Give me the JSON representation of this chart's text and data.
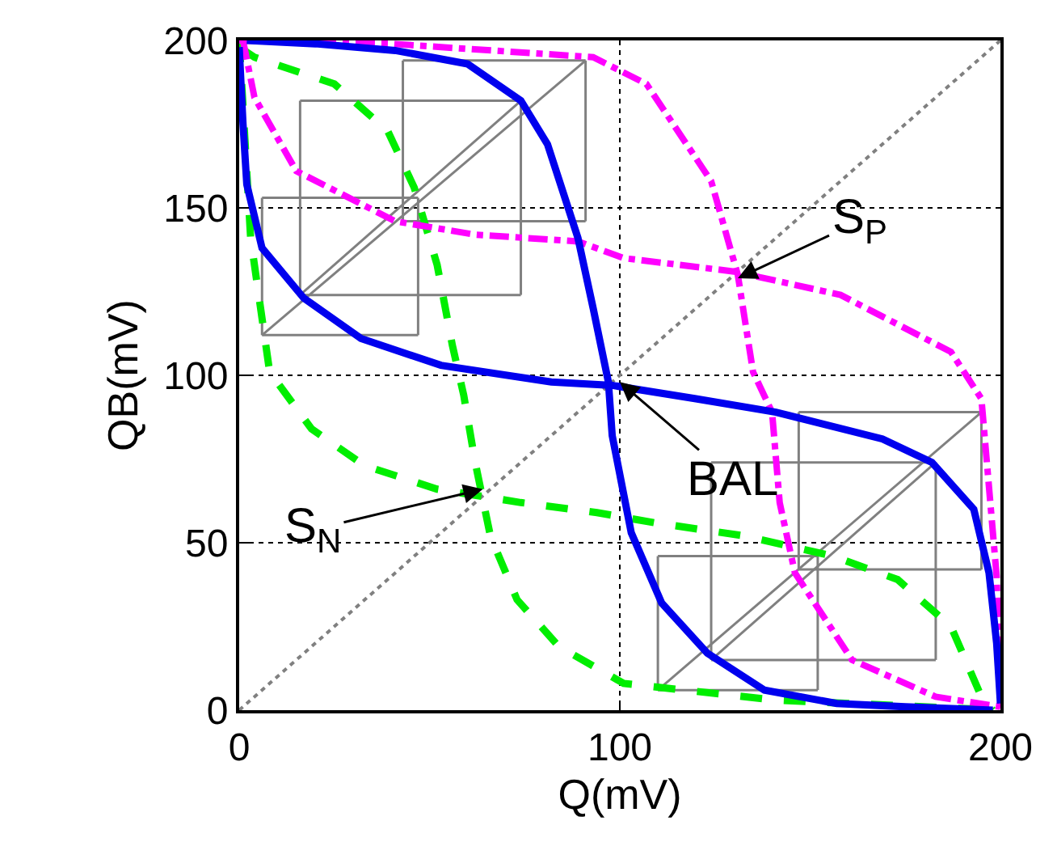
{
  "chart_data": {
    "type": "line",
    "xlabel": "Q(mV)",
    "ylabel": "QB(mV)",
    "xlim": [
      0,
      200
    ],
    "ylim": [
      0,
      200
    ],
    "xticks": [
      0,
      100,
      200
    ],
    "yticks": [
      0,
      50,
      100,
      150,
      200
    ],
    "grid": true,
    "series": [
      {
        "color": "#808080",
        "line_style": "dotted",
        "x": [
          0,
          200
        ],
        "values": [
          0,
          200
        ]
      },
      {
        "color": "#808080",
        "x": [
          6,
          47
        ],
        "values": [
          112,
          112
        ]
      },
      {
        "color": "#808080",
        "x": [
          6,
          47
        ],
        "values": [
          153,
          153
        ]
      },
      {
        "color": "#808080",
        "x": [
          6,
          6
        ],
        "values": [
          112,
          153
        ]
      },
      {
        "color": "#808080",
        "x": [
          47,
          47
        ],
        "values": [
          112,
          153
        ]
      },
      {
        "color": "#808080",
        "x": [
          16,
          74
        ],
        "values": [
          124,
          124
        ]
      },
      {
        "color": "#808080",
        "x": [
          16,
          74
        ],
        "values": [
          182,
          182
        ]
      },
      {
        "color": "#808080",
        "x": [
          16,
          16
        ],
        "values": [
          124,
          182
        ]
      },
      {
        "color": "#808080",
        "x": [
          74,
          74
        ],
        "values": [
          124,
          182
        ]
      },
      {
        "color": "#808080",
        "x": [
          43,
          91
        ],
        "values": [
          146,
          146
        ]
      },
      {
        "color": "#808080",
        "x": [
          43,
          91
        ],
        "values": [
          194,
          194
        ]
      },
      {
        "color": "#808080",
        "x": [
          43,
          43
        ],
        "values": [
          146,
          194
        ]
      },
      {
        "color": "#808080",
        "x": [
          91,
          91
        ],
        "values": [
          146,
          194
        ]
      },
      {
        "color": "#808080",
        "x": [
          6,
          91
        ],
        "values": [
          112,
          194
        ]
      },
      {
        "color": "#808080",
        "x": [
          16,
          74
        ],
        "values": [
          124,
          182
        ]
      },
      {
        "color": "#808080",
        "x": [
          110,
          152
        ],
        "values": [
          6,
          6
        ]
      },
      {
        "color": "#808080",
        "x": [
          110,
          152
        ],
        "values": [
          46,
          46
        ]
      },
      {
        "color": "#808080",
        "x": [
          110,
          110
        ],
        "values": [
          6,
          46
        ]
      },
      {
        "color": "#808080",
        "x": [
          152,
          152
        ],
        "values": [
          6,
          46
        ]
      },
      {
        "color": "#808080",
        "x": [
          124,
          183
        ],
        "values": [
          15,
          15
        ]
      },
      {
        "color": "#808080",
        "x": [
          124,
          183
        ],
        "values": [
          74,
          74
        ]
      },
      {
        "color": "#808080",
        "x": [
          124,
          124
        ],
        "values": [
          15,
          74
        ]
      },
      {
        "color": "#808080",
        "x": [
          183,
          183
        ],
        "values": [
          15,
          74
        ]
      },
      {
        "color": "#808080",
        "x": [
          147,
          195
        ],
        "values": [
          42,
          42
        ]
      },
      {
        "color": "#808080",
        "x": [
          147,
          195
        ],
        "values": [
          89,
          89
        ]
      },
      {
        "color": "#808080",
        "x": [
          147,
          147
        ],
        "values": [
          42,
          89
        ]
      },
      {
        "color": "#808080",
        "x": [
          195,
          195
        ],
        "values": [
          42,
          89
        ]
      },
      {
        "color": "#808080",
        "x": [
          110,
          195
        ],
        "values": [
          6,
          89
        ]
      },
      {
        "color": "#808080",
        "x": [
          124,
          183
        ],
        "values": [
          15,
          74
        ]
      },
      {
        "color": "#00ee00",
        "line_style": "dashed",
        "x": [
          0,
          4,
          25,
          39,
          46,
          52,
          56,
          59,
          62,
          66,
          73,
          84,
          101,
          141,
          200
        ],
        "values": [
          198,
          195,
          187,
          173,
          156,
          133,
          109,
          94,
          74,
          52,
          33,
          19,
          8,
          3,
          0
        ]
      },
      {
        "color": "#00ee00",
        "line_style": "dashed",
        "x": [
          0,
          3,
          8,
          19,
          33,
          52,
          74,
          94,
          109,
          133,
          156,
          173,
          187,
          195,
          198
        ],
        "values": [
          200,
          141,
          101,
          84,
          73,
          66,
          62,
          59,
          56,
          52,
          46,
          39,
          25,
          4,
          0
        ]
      },
      {
        "color": "#ff00ff",
        "line_style": "dashdot",
        "x": [
          0,
          40,
          93,
          107,
          124,
          131,
          135,
          140,
          142,
          146,
          161,
          183,
          200
        ],
        "values": [
          200,
          199,
          195,
          187,
          158,
          130,
          101,
          89,
          62,
          41,
          15,
          4,
          1
        ]
      },
      {
        "color": "#ff00ff",
        "line_style": "dashdot",
        "x": [
          1,
          4,
          15,
          41,
          62,
          89,
          101,
          130,
          158,
          187,
          195,
          199,
          200
        ],
        "values": [
          200,
          183,
          161,
          146,
          142,
          140,
          135,
          131,
          124,
          107,
          93,
          40,
          0
        ]
      },
      {
        "color": "#0000ee",
        "x": [
          0,
          1,
          2,
          6,
          17,
          32,
          53,
          82,
          98,
          120,
          141,
          169,
          182,
          193,
          197,
          199,
          200
        ],
        "values": [
          198,
          175,
          157,
          138,
          123,
          111,
          103,
          98,
          97,
          93,
          89,
          81,
          74,
          60,
          41,
          20,
          2
        ]
      },
      {
        "color": "#0000ee",
        "x": [
          2,
          20,
          41,
          60,
          74,
          81,
          89,
          93,
          97,
          98,
          103,
          111,
          123,
          138,
          157,
          175,
          198
        ],
        "values": [
          200,
          199,
          197,
          193,
          182,
          169,
          141,
          120,
          98,
          82,
          53,
          32,
          17,
          6,
          2,
          1,
          0
        ]
      }
    ],
    "annotations": [
      {
        "text": "BAL",
        "x": 100,
        "y": 98
      },
      {
        "text": "S$_{P}$",
        "x": 131,
        "y": 129
      },
      {
        "text": "S$_{N}$",
        "x": 64,
        "y": 66
      }
    ]
  }
}
